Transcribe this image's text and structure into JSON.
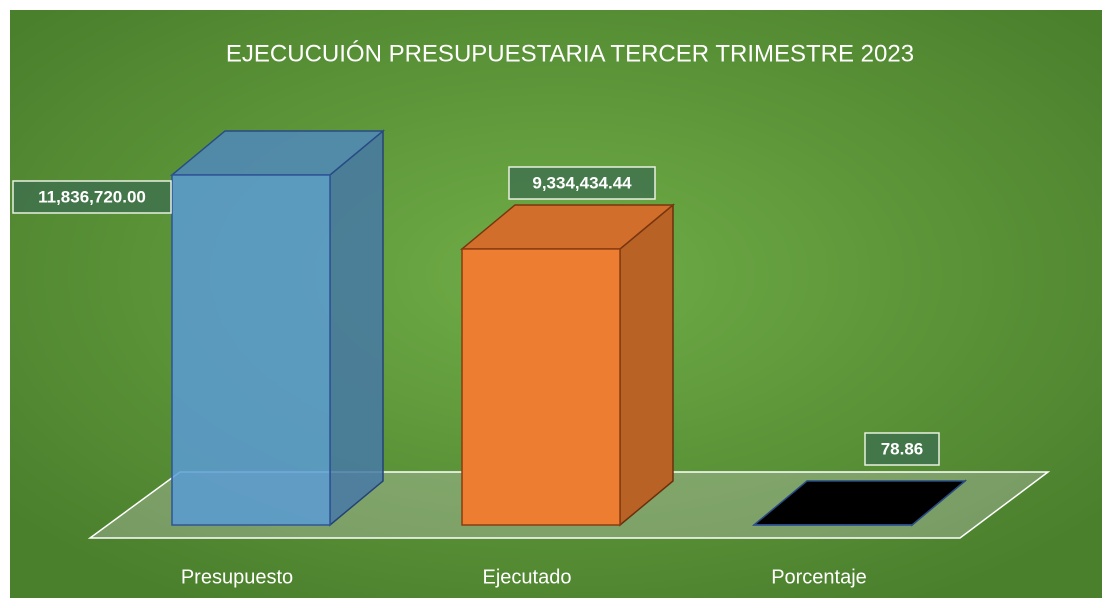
{
  "chart_data": {
    "type": "bar3d",
    "title": "EJECUCUIÓN PRESUPUESTARIA TERCER TRIMESTRE 2023",
    "categories": [
      "Presupuesto",
      "Ejecutado",
      "Porcentaje"
    ],
    "values": [
      11836720.0,
      9334434.44,
      78.86
    ],
    "value_labels": [
      "11,836,720.00",
      "9,334,434.44",
      "78.86"
    ],
    "colors": [
      "#5b9bd5",
      "#ed7d31",
      "#000000"
    ],
    "ylim": [
      0,
      14000000
    ]
  }
}
